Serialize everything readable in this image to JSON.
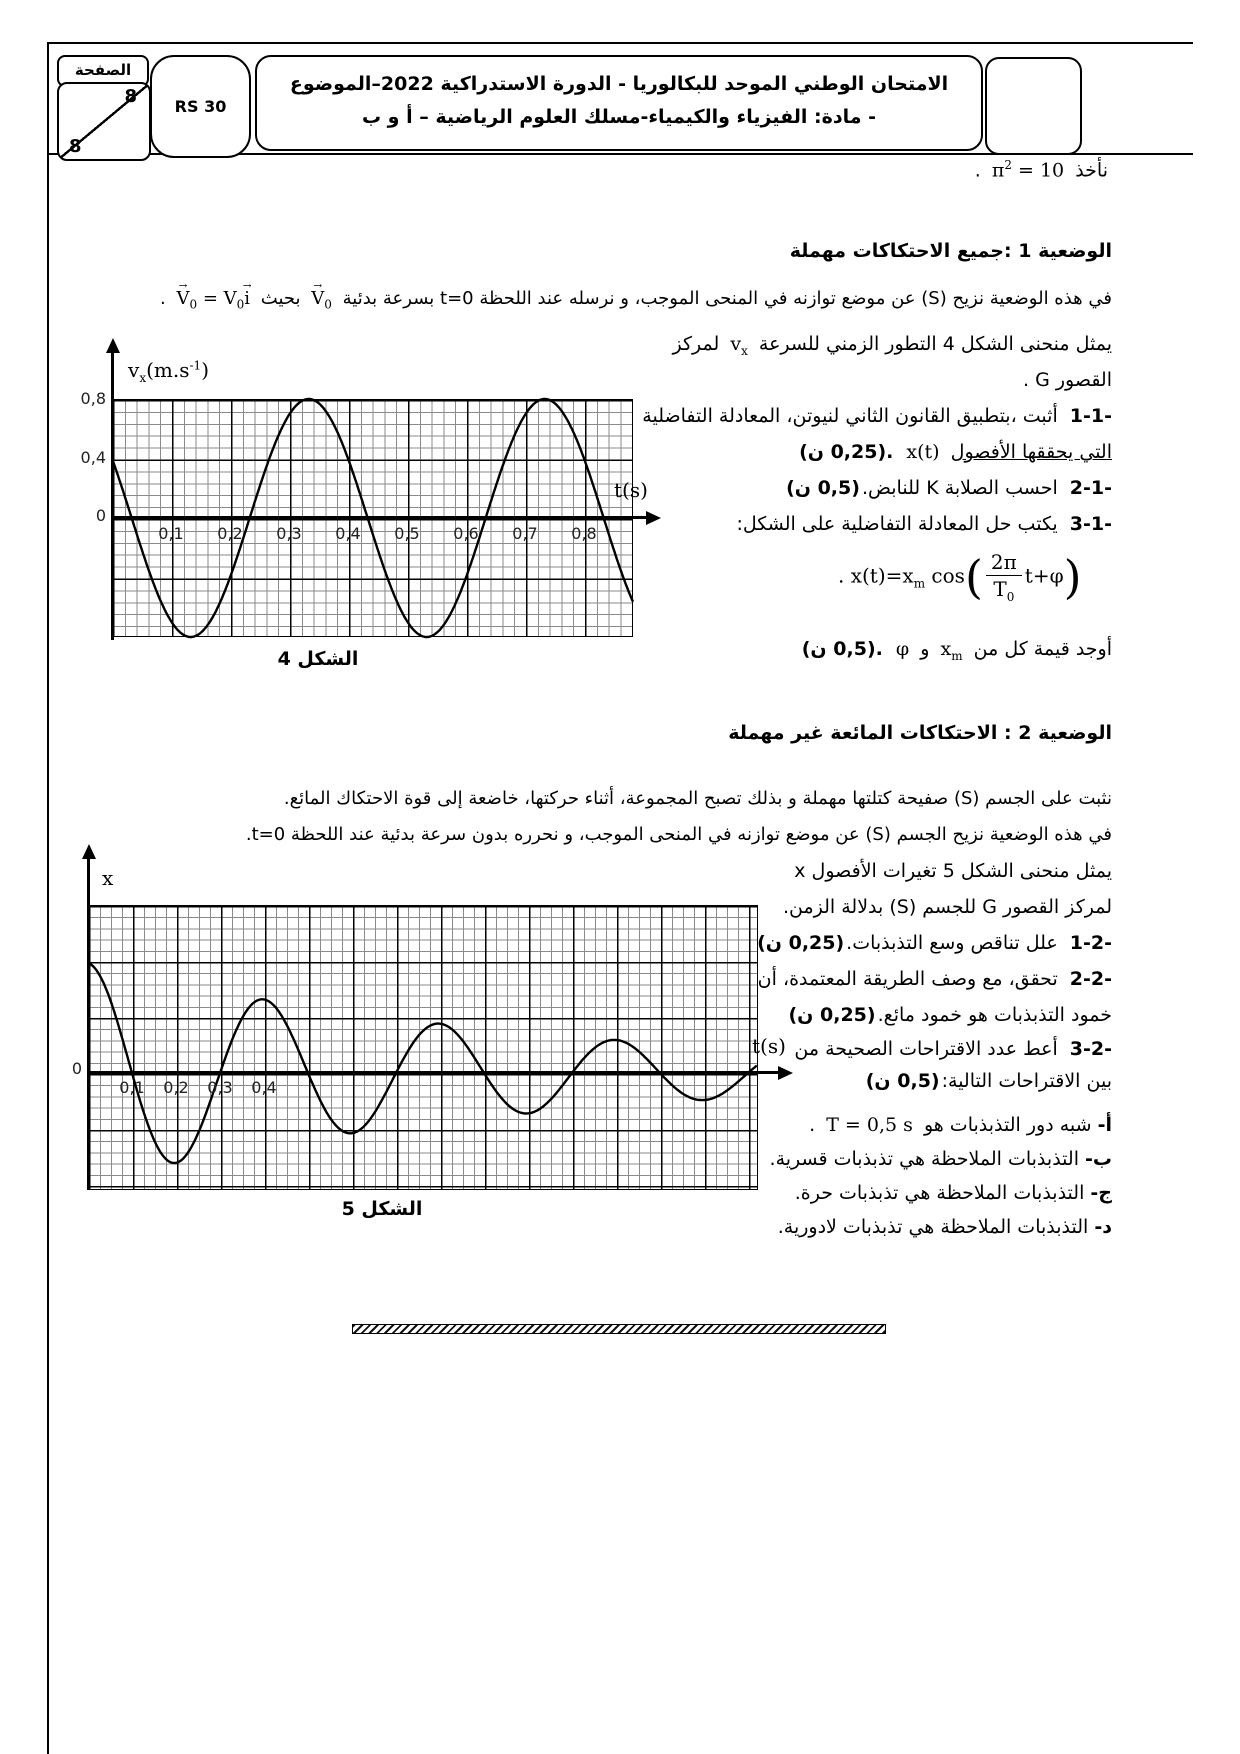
{
  "header": {
    "page_word": "الصفحة",
    "page_num_top": "8",
    "page_num_bottom": "8",
    "code": "RS 30",
    "title_line1": "الامتحان الوطني الموحد للبكالوريا - الدورة الاستدراكية 2022–الموضوع",
    "title_line2": "- مادة: الفيزياء والكيمياء-مسلك العلوم الرياضية – أ و ب"
  },
  "intro": {
    "lead": "نأخذ",
    "pi": "π",
    "exp": "2",
    "rhs": " = 10",
    "dot": "."
  },
  "sec1": {
    "title": "الوضعية 1 :جميع الاحتكاكات مهملة",
    "p1a": "في هذه الوضعية نزيح (S) عن موضع توازنه في المنحى الموجب، و نرسله عند اللحظة t=0 بسرعة بدئية",
    "p1b": "بحيث",
    "dot": ".",
    "l1a": "يمثل منحنى الشكل 4 التطور الزمني للسرعة",
    "l1b": "لمركز",
    "l2": "القصور G .",
    "q1_label": "1-1-",
    "q1_line1": "أثبت ،بتطبيق القانون الثاني لنيوتن، المعادلة التفاضلية",
    "q1_line2_underlined": "التي يحققها الأفصول",
    "q1_xt": "x(t)",
    "q1_mark": ".(0,25 ن)",
    "q2_label": "2-1-",
    "q2_text": "احسب الصلابة K للنابض.",
    "q2_mark": "(0,5 ن)",
    "q3_label": "3-1-",
    "q3_text": "يكتب حل المعادلة التفاضلية على الشكل:",
    "find_a": "أوجد قيمة كل من",
    "find_and": "و",
    "find_mark": ".(0,5 ن)"
  },
  "math": {
    "vec_V": "V",
    "sub_0": "0",
    "eq": " = ",
    "vec_i": "i",
    "v_base": "v",
    "v_sub": "x",
    "x_base": "x",
    "x_sub": "m",
    "phi": "φ",
    "eq_dot": ". ",
    "eq_lhs": "x(t)=x",
    "eq_cos": " cos",
    "paren_open": "(",
    "paren_close": ")",
    "frac_num": "2π",
    "frac_den": "T",
    "frac_den_sub": "0",
    "eq_tail": "t+φ"
  },
  "sec2": {
    "title": "الوضعية 2 : الاحتكاكات المائعة غير مهملة",
    "p1": "نثبت على الجسم (S) صفيحة كتلتها مهملة و بذلك تصبح المجموعة، أثناء حركتها، خاضعة إلى قوة الاحتكاك المائع.",
    "p2": "في هذه الوضعية نزيح الجسم (S) عن موضع توازنه في المنحى الموجب، و نحرره بدون سرعة بدئية عند اللحظة t=0.",
    "l1": "يمثل منحنى الشكل 5 تغيرات الأفصول x",
    "l2": "لمركز القصور G للجسم (S) بدلالة الزمن.",
    "q1_label": "1-2-",
    "q1_text": "علل تناقص وسع التذبذبات.",
    "q1_mark": "(0,25 ن)",
    "q2_label": "2-2-",
    "q2_line1": "تحقق، مع وصف الطريقة المعتمدة، أن",
    "q2_line2": "خمود التذبذبات هو خمود مائع.",
    "q2_mark": "(0,25 ن)",
    "q3_label": "3-2-",
    "q3_line1": "أعط عدد الاقتراحات الصحيحة من",
    "q3_line2": "بين الاقتراحات التالية:",
    "q3_mark": "(0,5 ن)",
    "options": [
      {
        "key": "أ-",
        "pre": "شبه دور التذبذبات هو",
        "formula": "T = 0,5 s",
        "post": " ."
      },
      {
        "key": "ب-",
        "pre": "التذبذبات الملاحظة هي تذبذبات قسرية.",
        "formula": "",
        "post": ""
      },
      {
        "key": "ج-",
        "pre": "التذبذبات الملاحظة هي تذبذبات حرة.",
        "formula": "",
        "post": ""
      },
      {
        "key": "د-",
        "pre": "التذبذبات الملاحظة هي تذبذبات لادورية.",
        "formula": "",
        "post": ""
      }
    ]
  },
  "fig4": {
    "caption": "الشكل 4",
    "xlabel": "t(s)",
    "ylabel_base": "v",
    "ylabel_sub": "x",
    "ylabel_unit": "(m.s",
    "ylabel_exp": "-1",
    "ylabel_close": ")",
    "zero": "0",
    "y_ticks": [
      "0,8",
      "0,4"
    ],
    "x_ticks": [
      "0,1",
      "0,2",
      "0,3",
      "0,4",
      "0,5",
      "0,6",
      "0,7",
      "0,8"
    ]
  },
  "fig5": {
    "caption": "الشكل 5",
    "xlabel": "t(s)",
    "ylabel": "x",
    "zero": "0",
    "x_ticks": [
      "0,1",
      "0,2",
      "0,3",
      "0,4"
    ]
  },
  "chart_data": [
    {
      "id": "figure4",
      "type": "line",
      "title": "الشكل 4",
      "xlabel": "t(s)",
      "ylabel": "vx (m.s-1)",
      "xlim": [
        0,
        0.883
      ],
      "ylim": [
        -0.8,
        0.8
      ],
      "x_ticks": [
        0.1,
        0.2,
        0.3,
        0.4,
        0.5,
        0.6,
        0.7,
        0.8
      ],
      "y_ticks": [
        -0.8,
        -0.4,
        0,
        0.4,
        0.8
      ],
      "grid": true,
      "legend": "none",
      "series": [
        {
          "name": "vx",
          "model": "sinusoid",
          "amplitude": 0.8,
          "period_s": 0.4,
          "phase_rad": 1.0472,
          "formula": "vx(t) = 0.8 · cos(2π·t/0.4 + π/3)",
          "key_points": [
            {
              "t": 0,
              "v": 0.4
            },
            {
              "t": 0.133,
              "v": -0.8
            },
            {
              "t": 0.333,
              "v": 0.8
            },
            {
              "t": 0.533,
              "v": -0.8
            },
            {
              "t": 0.733,
              "v": 0.8
            }
          ]
        }
      ]
    },
    {
      "id": "figure5",
      "type": "line",
      "title": "الشكل 5",
      "xlabel": "t(s)",
      "ylabel": "x",
      "xlim": [
        0,
        1.52
      ],
      "ylim": [
        -2.1,
        3.0
      ],
      "x_ticks": [
        0.1,
        0.2,
        0.3,
        0.4
      ],
      "grid": true,
      "legend": "none",
      "units_note": "y values in grid divisions (no numeric y labels shown)",
      "series": [
        {
          "name": "x",
          "model": "damped_sinusoid",
          "initial": 1.96,
          "damping_per_s": 1.0,
          "pseudo_period_s": 0.4,
          "formula": "x(t) = 1.96 · e^(−t) · cos(2π·t/0.4)",
          "key_points": [
            {
              "t": 0,
              "v": 1.96
            },
            {
              "t": 0.2,
              "v": -1.6
            },
            {
              "t": 0.4,
              "v": 1.31
            },
            {
              "t": 0.6,
              "v": -1.08
            },
            {
              "t": 0.8,
              "v": 0.88
            },
            {
              "t": 1.0,
              "v": -0.72
            },
            {
              "t": 1.2,
              "v": 0.59
            },
            {
              "t": 1.4,
              "v": -0.48
            }
          ]
        }
      ]
    }
  ]
}
